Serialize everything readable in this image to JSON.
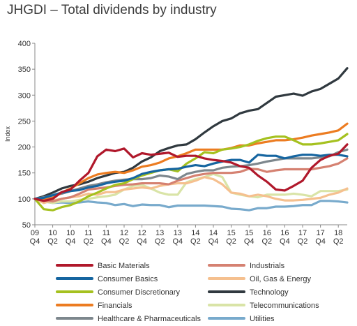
{
  "chart_data": {
    "type": "line",
    "title": "JHGDI – Total dividends by industry",
    "ylabel": "Index",
    "xlabel": "",
    "ylim": [
      50,
      400
    ],
    "yticks": [
      50,
      100,
      150,
      200,
      250,
      300,
      350,
      400
    ],
    "grid": false,
    "legend_position": "bottom",
    "x_tick_labels": [
      {
        "year": "09",
        "q": "Q4"
      },
      {
        "year": "10",
        "q": "Q2"
      },
      {
        "year": "10",
        "q": "Q4"
      },
      {
        "year": "11",
        "q": "Q2"
      },
      {
        "year": "11",
        "q": "Q4"
      },
      {
        "year": "12",
        "q": "Q2"
      },
      {
        "year": "12",
        "q": "Q4"
      },
      {
        "year": "13",
        "q": "Q2"
      },
      {
        "year": "13",
        "q": "Q4"
      },
      {
        "year": "14",
        "q": "Q2"
      },
      {
        "year": "14",
        "q": "Q4"
      },
      {
        "year": "15",
        "q": "Q2"
      },
      {
        "year": "15",
        "q": "Q4"
      },
      {
        "year": "16",
        "q": "Q2"
      },
      {
        "year": "16",
        "q": "Q4"
      },
      {
        "year": "17",
        "q": "Q2"
      },
      {
        "year": "17",
        "q": "Q4"
      },
      {
        "year": "18",
        "q": "Q2"
      }
    ],
    "x": [
      0,
      1,
      2,
      3,
      4,
      5,
      6,
      7,
      8,
      9,
      10,
      11,
      12,
      13,
      14,
      15,
      16,
      17,
      18,
      19,
      20,
      21,
      22,
      23,
      24,
      25,
      26,
      27,
      28,
      29,
      30,
      31,
      32,
      33,
      34,
      35
    ],
    "series": [
      {
        "name": "Basic Materials",
        "color": "#b0182b",
        "values": [
          100,
          96,
          100,
          113,
          118,
          135,
          150,
          182,
          195,
          192,
          197,
          180,
          188,
          185,
          187,
          189,
          181,
          183,
          183,
          178,
          175,
          173,
          170,
          163,
          160,
          145,
          133,
          118,
          116,
          125,
          135,
          160,
          175,
          183,
          187,
          205
        ]
      },
      {
        "name": "Consumer Basics",
        "color": "#1565a0",
        "values": [
          100,
          102,
          107,
          112,
          115,
          117,
          122,
          125,
          130,
          133,
          135,
          140,
          148,
          152,
          155,
          157,
          158,
          162,
          165,
          163,
          168,
          172,
          175,
          175,
          170,
          185,
          183,
          183,
          178,
          182,
          185,
          185,
          183,
          185,
          185,
          182
        ]
      },
      {
        "name": "Consumer Discretionary",
        "color": "#a5c11f",
        "values": [
          100,
          80,
          78,
          84,
          88,
          95,
          105,
          112,
          120,
          127,
          130,
          138,
          145,
          150,
          155,
          157,
          153,
          168,
          178,
          190,
          188,
          195,
          197,
          200,
          205,
          212,
          217,
          220,
          220,
          213,
          205,
          205,
          207,
          210,
          213,
          225
        ]
      },
      {
        "name": "Financials",
        "color": "#ec7c21",
        "values": [
          100,
          98,
          102,
          112,
          120,
          130,
          140,
          147,
          150,
          152,
          150,
          155,
          162,
          165,
          170,
          178,
          182,
          188,
          195,
          195,
          195,
          195,
          198,
          203,
          203,
          207,
          210,
          213,
          213,
          215,
          218,
          222,
          225,
          228,
          232,
          245
        ]
      },
      {
        "name": "Healthcare & Pharmaceuticals",
        "color": "#7d878d",
        "values": [
          100,
          103,
          107,
          110,
          115,
          120,
          125,
          128,
          132,
          135,
          137,
          138,
          138,
          140,
          145,
          143,
          138,
          148,
          152,
          155,
          155,
          160,
          162,
          163,
          165,
          168,
          172,
          175,
          178,
          178,
          178,
          178,
          180,
          182,
          190,
          195
        ]
      },
      {
        "name": "Industrials",
        "color": "#d58171",
        "values": [
          100,
          97,
          95,
          100,
          103,
          110,
          118,
          120,
          122,
          125,
          127,
          128,
          130,
          130,
          130,
          128,
          135,
          140,
          145,
          148,
          150,
          150,
          150,
          152,
          158,
          157,
          152,
          155,
          157,
          157,
          157,
          157,
          160,
          163,
          168,
          178
        ]
      },
      {
        "name": "Oil, Gas & Energy",
        "color": "#f5c08f",
        "values": [
          100,
          92,
          97,
          100,
          103,
          105,
          110,
          108,
          113,
          113,
          118,
          120,
          122,
          120,
          125,
          128,
          130,
          130,
          135,
          142,
          138,
          128,
          112,
          110,
          105,
          108,
          105,
          100,
          97,
          97,
          98,
          100,
          102,
          108,
          112,
          120
        ]
      },
      {
        "name": "Technology",
        "color": "#30393f",
        "values": [
          100,
          105,
          112,
          120,
          125,
          128,
          133,
          140,
          145,
          150,
          152,
          160,
          172,
          180,
          192,
          198,
          203,
          205,
          215,
          228,
          240,
          250,
          255,
          265,
          270,
          273,
          285,
          297,
          300,
          303,
          299,
          307,
          312,
          322,
          332,
          352
        ]
      },
      {
        "name": "Telecommunications",
        "color": "#d9e4a7",
        "values": [
          100,
          95,
          92,
          95,
          95,
          98,
          100,
          103,
          105,
          108,
          118,
          125,
          127,
          120,
          112,
          108,
          108,
          132,
          138,
          142,
          148,
          142,
          112,
          108,
          105,
          103,
          108,
          108,
          108,
          110,
          108,
          105,
          115,
          115,
          115,
          118
        ]
      },
      {
        "name": "Utilities",
        "color": "#78aacc",
        "values": [
          100,
          95,
          92,
          93,
          92,
          93,
          95,
          93,
          92,
          88,
          90,
          86,
          89,
          88,
          88,
          84,
          87,
          87,
          87,
          87,
          86,
          85,
          81,
          80,
          78,
          82,
          82,
          85,
          85,
          86,
          88,
          88,
          96,
          96,
          95,
          93
        ]
      }
    ]
  }
}
